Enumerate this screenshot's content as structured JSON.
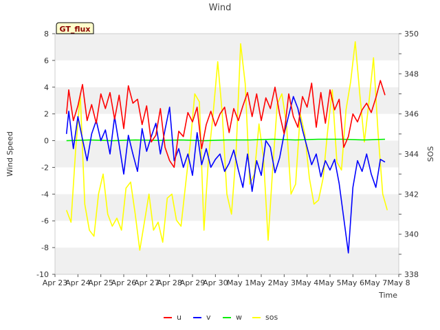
{
  "chart_data": {
    "type": "line",
    "title": "Wind",
    "xlabel": "Time",
    "ylabel": "Wind Speed",
    "y2label": "SOS",
    "badge": "GT_flux",
    "x_ticks": [
      "Apr 23",
      "Apr 24",
      "Apr 25",
      "Apr 26",
      "Apr 27",
      "Apr 28",
      "Apr 29",
      "Apr 30",
      "May 1",
      "May 2",
      "May 3",
      "May 4",
      "May 5",
      "May 6",
      "May 7",
      "May 8"
    ],
    "xlim": [
      0,
      15
    ],
    "ylim": [
      -10,
      8
    ],
    "y_ticks": [
      "-10",
      "-8",
      "-6",
      "-4",
      "-2",
      "0",
      "2",
      "4",
      "6",
      "8"
    ],
    "y2lim": [
      338,
      350
    ],
    "y2_ticks": [
      "338",
      "340",
      "342",
      "344",
      "346",
      "348",
      "350"
    ],
    "grid_bands": true,
    "legend_position": "bottom-center",
    "series": [
      {
        "name": "u",
        "axis": "left",
        "color": "#ff0000",
        "x": [
          0.5,
          0.6,
          0.8,
          1.0,
          1.2,
          1.4,
          1.6,
          1.8,
          2.0,
          2.2,
          2.4,
          2.6,
          2.8,
          3.0,
          3.2,
          3.4,
          3.6,
          3.8,
          4.0,
          4.2,
          4.4,
          4.6,
          4.8,
          5.0,
          5.2,
          5.4,
          5.6,
          5.8,
          6.0,
          6.2,
          6.4,
          6.6,
          6.8,
          7.0,
          7.2,
          7.4,
          7.6,
          7.8,
          8.0,
          8.2,
          8.4,
          8.6,
          8.8,
          9.0,
          9.2,
          9.4,
          9.6,
          9.8,
          10.0,
          10.2,
          10.4,
          10.6,
          10.8,
          11.0,
          11.2,
          11.4,
          11.6,
          11.8,
          12.0,
          12.2,
          12.4,
          12.6,
          12.8,
          13.0,
          13.2,
          13.4,
          13.6,
          13.8,
          14.0,
          14.2,
          14.4
        ],
        "values": [
          2.0,
          3.8,
          1.5,
          2.6,
          4.2,
          1.5,
          2.7,
          1.3,
          3.5,
          2.4,
          3.6,
          1.6,
          3.4,
          0.9,
          4.1,
          2.8,
          3.1,
          1.2,
          2.6,
          -0.1,
          0.4,
          2.4,
          -0.5,
          -1.5,
          -2.0,
          0.7,
          0.3,
          2.1,
          1.4,
          2.5,
          -0.6,
          1.2,
          2.2,
          1.1,
          2.0,
          2.5,
          0.6,
          2.4,
          1.5,
          2.6,
          3.6,
          1.8,
          3.5,
          1.5,
          3.2,
          2.4,
          4.0,
          2.0,
          0.5,
          3.5,
          1.8,
          1.0,
          3.3,
          2.5,
          4.3,
          1.0,
          3.6,
          1.3,
          3.8,
          2.3,
          3.1,
          -0.5,
          0.3,
          2.0,
          1.4,
          2.3,
          2.8,
          2.1,
          3.2,
          4.5,
          3.4
        ]
      },
      {
        "name": "v",
        "axis": "left",
        "color": "#0000ff",
        "x": [
          0.5,
          0.6,
          0.8,
          1.0,
          1.2,
          1.4,
          1.6,
          1.8,
          2.0,
          2.2,
          2.4,
          2.6,
          2.8,
          3.0,
          3.2,
          3.4,
          3.6,
          3.8,
          4.0,
          4.2,
          4.4,
          4.6,
          4.8,
          5.0,
          5.2,
          5.4,
          5.6,
          5.8,
          6.0,
          6.2,
          6.4,
          6.6,
          6.8,
          7.0,
          7.2,
          7.4,
          7.6,
          7.8,
          8.0,
          8.2,
          8.4,
          8.6,
          8.8,
          9.0,
          9.2,
          9.4,
          9.6,
          9.8,
          10.0,
          10.2,
          10.4,
          10.6,
          10.8,
          11.0,
          11.2,
          11.4,
          11.6,
          11.8,
          12.0,
          12.2,
          12.4,
          12.6,
          12.8,
          13.0,
          13.2,
          13.4,
          13.6,
          13.8,
          14.0,
          14.2,
          14.4
        ],
        "values": [
          0.5,
          2.2,
          -0.6,
          1.8,
          0.1,
          -1.5,
          0.5,
          1.5,
          0.0,
          0.8,
          -1.0,
          1.8,
          -0.3,
          -2.5,
          0.4,
          -1.0,
          -2.3,
          0.9,
          -0.8,
          0.3,
          1.3,
          -1.0,
          0.8,
          2.5,
          -1.5,
          -0.6,
          -2.0,
          -1.0,
          -2.6,
          0.6,
          -1.8,
          -0.6,
          -2.0,
          -1.4,
          -1.0,
          -2.3,
          -1.7,
          -0.7,
          -2.2,
          -3.5,
          -1.0,
          -3.8,
          -1.5,
          -2.6,
          0.0,
          -0.5,
          -2.4,
          -1.3,
          0.5,
          1.9,
          3.3,
          2.4,
          0.8,
          -0.5,
          -1.8,
          -1.0,
          -2.7,
          -1.5,
          -2.2,
          -1.4,
          -3.2,
          -5.8,
          -8.4,
          -3.5,
          -1.5,
          -2.3,
          -1.0,
          -2.5,
          -3.5,
          -1.4,
          -1.6
        ]
      },
      {
        "name": "w",
        "axis": "left",
        "color": "#00ee00",
        "x": [
          0.5,
          1.5,
          2.5,
          3.5,
          4.5,
          5.5,
          6.5,
          7.5,
          8.5,
          9.5,
          10.5,
          11.5,
          12.5,
          13.5,
          14.4
        ],
        "values": [
          0.0,
          0.05,
          0.0,
          0.05,
          0.02,
          0.05,
          0.0,
          0.05,
          0.05,
          0.1,
          0.05,
          0.1,
          0.1,
          0.05,
          0.1
        ]
      },
      {
        "name": "sos",
        "axis": "right",
        "color": "#ffff00",
        "x": [
          0.5,
          0.7,
          0.9,
          1.1,
          1.3,
          1.5,
          1.7,
          1.9,
          2.1,
          2.3,
          2.5,
          2.7,
          2.9,
          3.1,
          3.3,
          3.5,
          3.7,
          3.9,
          4.1,
          4.3,
          4.5,
          4.7,
          4.9,
          5.1,
          5.3,
          5.5,
          5.7,
          5.9,
          6.1,
          6.3,
          6.5,
          6.7,
          6.9,
          7.1,
          7.3,
          7.5,
          7.7,
          7.9,
          8.1,
          8.3,
          8.5,
          8.7,
          8.9,
          9.1,
          9.3,
          9.5,
          9.7,
          9.9,
          10.1,
          10.3,
          10.5,
          10.7,
          10.9,
          11.1,
          11.3,
          11.5,
          11.7,
          11.9,
          12.1,
          12.3,
          12.5,
          12.7,
          12.9,
          13.1,
          13.3,
          13.5,
          13.7,
          13.9,
          14.1,
          14.3,
          14.5
        ],
        "values": [
          341.2,
          340.6,
          344.2,
          347.0,
          341.5,
          340.2,
          339.9,
          342.0,
          343.0,
          341.0,
          340.4,
          340.8,
          340.2,
          342.3,
          342.6,
          341.0,
          339.2,
          340.6,
          342.0,
          340.2,
          340.6,
          339.6,
          341.8,
          342.0,
          340.7,
          340.4,
          342.5,
          344.5,
          347.0,
          346.6,
          340.2,
          343.8,
          346.0,
          348.6,
          346.0,
          342.0,
          341.0,
          344.0,
          349.5,
          347.5,
          342.5,
          343.0,
          345.5,
          343.8,
          339.7,
          343.3,
          346.5,
          347.0,
          345.5,
          342.0,
          342.5,
          346.0,
          345.0,
          342.8,
          341.5,
          341.7,
          342.8,
          345.2,
          347.2,
          343.6,
          343.2,
          346.2,
          347.6,
          349.6,
          347.0,
          344.6,
          346.6,
          348.8,
          345.0,
          342.0,
          341.2
        ]
      }
    ]
  }
}
